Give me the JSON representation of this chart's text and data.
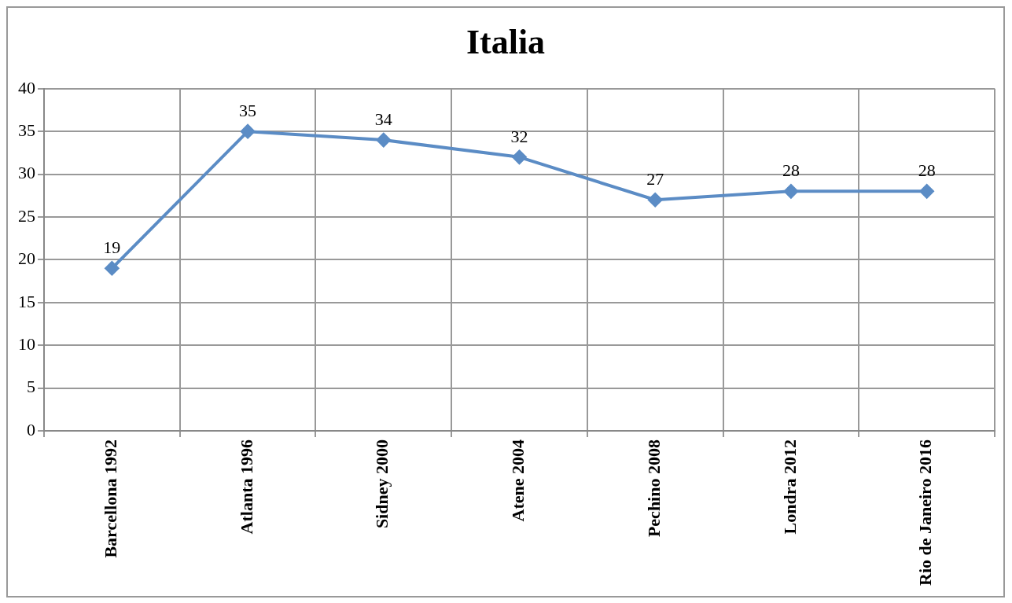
{
  "chart_data": {
    "type": "line",
    "title": "Italia",
    "categories": [
      "Barcellona 1992",
      "Atlanta 1996",
      "Sidney 2000",
      "Atene 2004",
      "Pechino 2008",
      "Londra 2012",
      "Rio de Janeiro 2016"
    ],
    "series": [
      {
        "color": "#5b8cc5",
        "values": [
          19,
          35,
          34,
          32,
          27,
          28,
          28
        ]
      }
    ],
    "ylim": [
      0,
      40
    ],
    "yticks": [
      0,
      5,
      10,
      15,
      20,
      25,
      30,
      35,
      40
    ],
    "grid": true,
    "marker": "diamond",
    "line_style": "solid",
    "data_labels": true,
    "legend": false
  }
}
